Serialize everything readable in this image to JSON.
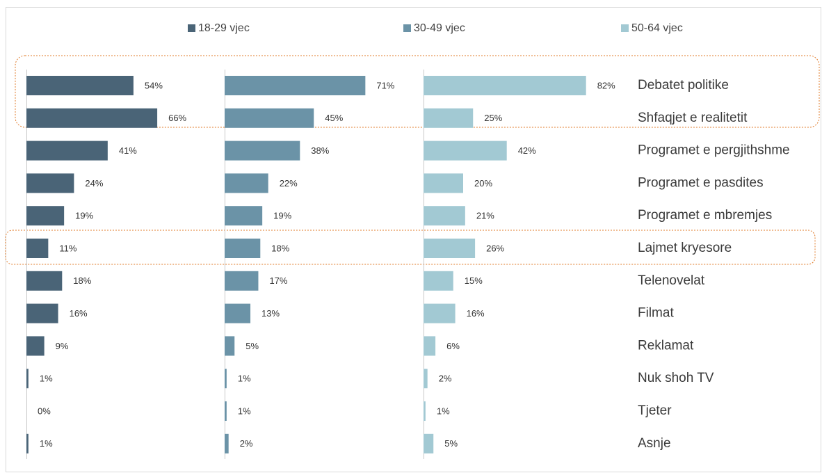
{
  "chart_data": {
    "type": "bar",
    "orientation": "horizontal",
    "legend": "top",
    "categories": [
      "Debatet politike",
      "Shfaqjet e realitetit",
      "Programet e pergjithshme",
      "Programet e pasdites",
      "Programet e mbremjes",
      "Lajmet kryesore",
      "Telenovelat",
      "Filmat",
      "Reklamat",
      "Nuk shoh TV",
      "Tjeter",
      "Asnje"
    ],
    "series": [
      {
        "name": "18-29 vjec",
        "color": "#4a6477",
        "values": [
          54,
          66,
          41,
          24,
          19,
          11,
          18,
          16,
          9,
          1,
          0,
          1
        ],
        "value_labels": [
          "54%",
          "66%",
          "41%",
          "24%",
          "19%",
          "11%",
          "18%",
          "16%",
          "9%",
          "1%",
          "0%",
          "1%"
        ]
      },
      {
        "name": "30-49 vjec",
        "color": "#6b93a7",
        "values": [
          71,
          45,
          38,
          22,
          19,
          18,
          17,
          13,
          5,
          1,
          1,
          2
        ],
        "value_labels": [
          "71%",
          "45%",
          "38%",
          "22%",
          "19%",
          "18%",
          "17%",
          "13%",
          "5%",
          "1%",
          "1%",
          "2%"
        ]
      },
      {
        "name": "50-64 vjec",
        "color": "#a2c9d3",
        "values": [
          82,
          25,
          42,
          20,
          21,
          26,
          15,
          16,
          6,
          2,
          1,
          5
        ],
        "value_labels": [
          "82%",
          "25%",
          "42%",
          "20%",
          "21%",
          "26%",
          "15%",
          "16%",
          "6%",
          "2%",
          "1%",
          "5%"
        ]
      }
    ]
  }
}
